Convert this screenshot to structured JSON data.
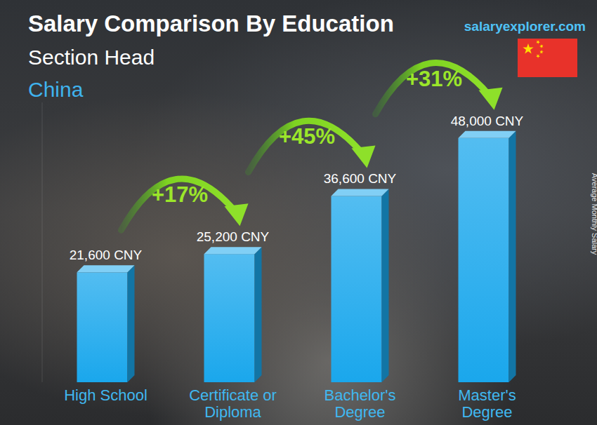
{
  "chart_data": {
    "type": "bar",
    "title": "Salary Comparison By Education",
    "subtitle": "Section Head",
    "region": "China",
    "source": "salaryexplorer.com",
    "y_label": "Average Monthly Salary",
    "categories": [
      "High School",
      "Certificate or Diploma",
      "Bachelor's Degree",
      "Master's Degree"
    ],
    "values": [
      21600,
      25200,
      36600,
      48000
    ],
    "value_labels": [
      "21,600 CNY",
      "25,200 CNY",
      "36,600 CNY",
      "48,000 CNY"
    ],
    "annotations": [
      "+17%",
      "+45%",
      "+31%"
    ],
    "color": "#1aa7ec",
    "ylim": [
      0,
      55000
    ],
    "data_labels": true,
    "tick_labels": "x",
    "grid": false
  }
}
